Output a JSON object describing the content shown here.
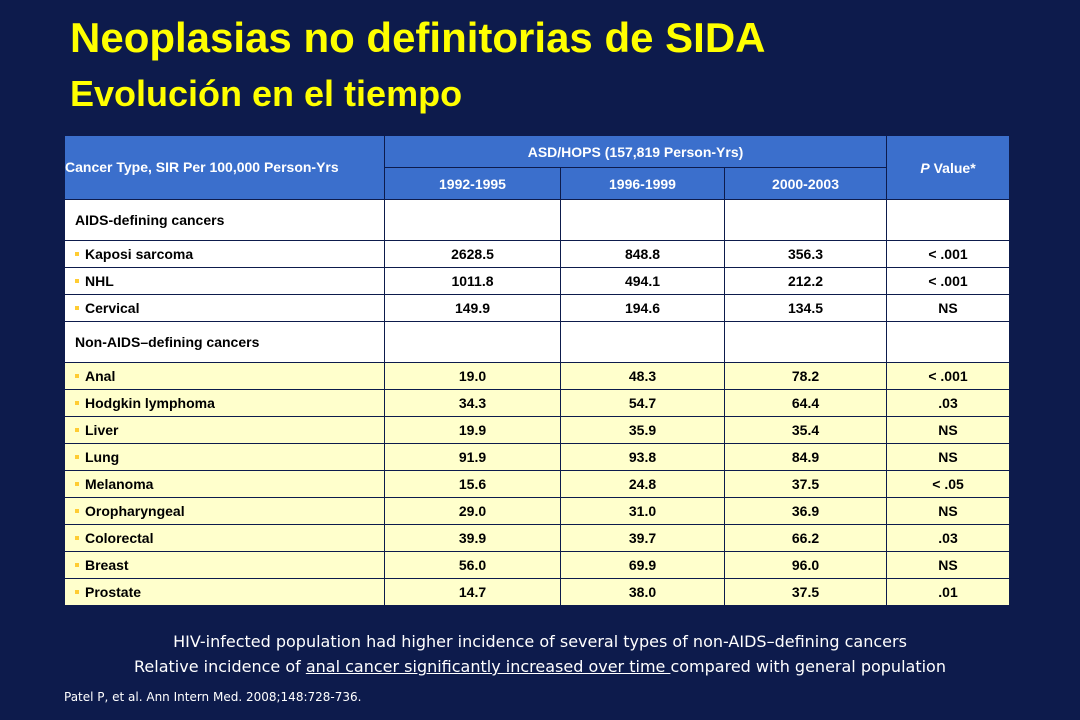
{
  "title": "Neoplasias no definitorias de SIDA",
  "subtitle": "Evolución en el tiempo",
  "table": {
    "header_label": "Cancer Type, SIR Per 100,000 Person-Yrs",
    "header_group": "ASD/HOPS (157,819 Person-Yrs)",
    "periods": [
      "1992-1995",
      "1996-1999",
      "2000-2003"
    ],
    "p_value_italic": "P",
    "p_value_rest": " Value*",
    "sections": [
      {
        "title": "AIDS-defining cancers",
        "rows": [
          {
            "label": "Kaposi sarcoma",
            "values": [
              "2628.5",
              "848.8",
              "356.3"
            ],
            "p": "< .001"
          },
          {
            "label": "NHL",
            "values": [
              "1011.8",
              "494.1",
              "212.2"
            ],
            "p": "< .001"
          },
          {
            "label": "Cervical",
            "values": [
              "149.9",
              "194.6",
              "134.5"
            ],
            "p": "NS"
          }
        ]
      },
      {
        "title": "Non-AIDS–defining cancers",
        "rows": [
          {
            "label": "Anal",
            "values": [
              "19.0",
              "48.3",
              "78.2"
            ],
            "p": "< .001"
          },
          {
            "label": "Hodgkin lymphoma",
            "values": [
              "34.3",
              "54.7",
              "64.4"
            ],
            "p": ".03"
          },
          {
            "label": "Liver",
            "values": [
              "19.9",
              "35.9",
              "35.4"
            ],
            "p": "NS"
          },
          {
            "label": "Lung",
            "values": [
              "91.9",
              "93.8",
              "84.9"
            ],
            "p": "NS"
          },
          {
            "label": "Melanoma",
            "values": [
              "15.6",
              "24.8",
              "37.5"
            ],
            "p": "< .05"
          },
          {
            "label": "Oropharyngeal",
            "values": [
              "29.0",
              "31.0",
              "36.9"
            ],
            "p": "NS"
          },
          {
            "label": "Colorectal",
            "values": [
              "39.9",
              "39.7",
              "66.2"
            ],
            "p": ".03"
          },
          {
            "label": "Breast",
            "values": [
              "56.0",
              "69.9",
              "96.0"
            ],
            "p": "NS"
          },
          {
            "label": "Prostate",
            "values": [
              "14.7",
              "38.0",
              "37.5"
            ],
            "p": ".01"
          }
        ]
      }
    ]
  },
  "notes": {
    "line1": "HIV-infected population had higher incidence of several types of non-AIDS–defining  cancers",
    "line2_pre": "Relative incidence of ",
    "line2_underlined": "anal cancer significantly increased over time ",
    "line2_post": "compared with general population"
  },
  "reference": "Patel P, et al. Ann Intern Med. 2008;148:728-736.",
  "colors": {
    "background": "#0d1b4c",
    "title": "#ffff00",
    "header": "#3b6fcc",
    "highlight_row": "#ffffcc",
    "bullet": "#ffcc33"
  }
}
